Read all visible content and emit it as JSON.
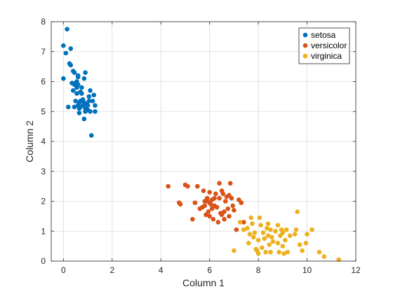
{
  "chart_data": {
    "type": "scatter",
    "title": "",
    "xlabel": "Column 1",
    "ylabel": "Column 2",
    "xlim": [
      -0.5,
      12
    ],
    "ylim": [
      0,
      8
    ],
    "xticks": [
      0,
      2,
      4,
      6,
      8,
      10,
      12
    ],
    "yticks": [
      0,
      1,
      2,
      3,
      4,
      5,
      6,
      7,
      8
    ],
    "grid": true,
    "legend_position": "top-right",
    "series": [
      {
        "name": "setosa",
        "color": "#0072BD",
        "points": [
          [
            0.0,
            7.2
          ],
          [
            0.0,
            6.1
          ],
          [
            0.1,
            6.95
          ],
          [
            0.15,
            7.75
          ],
          [
            0.2,
            5.15
          ],
          [
            0.25,
            6.6
          ],
          [
            0.3,
            6.55
          ],
          [
            0.3,
            7.1
          ],
          [
            0.35,
            5.95
          ],
          [
            0.4,
            5.7
          ],
          [
            0.4,
            6.35
          ],
          [
            0.45,
            6.3
          ],
          [
            0.45,
            5.9
          ],
          [
            0.45,
            5.15
          ],
          [
            0.5,
            5.95
          ],
          [
            0.5,
            5.35
          ],
          [
            0.55,
            6.0
          ],
          [
            0.55,
            5.8
          ],
          [
            0.55,
            5.6
          ],
          [
            0.6,
            6.2
          ],
          [
            0.6,
            6.15
          ],
          [
            0.6,
            5.9
          ],
          [
            0.6,
            5.2
          ],
          [
            0.65,
            5.3
          ],
          [
            0.65,
            5.1
          ],
          [
            0.65,
            4.95
          ],
          [
            0.7,
            5.65
          ],
          [
            0.7,
            5.35
          ],
          [
            0.7,
            5.15
          ],
          [
            0.75,
            5.8
          ],
          [
            0.75,
            5.6
          ],
          [
            0.8,
            5.4
          ],
          [
            0.8,
            5.2
          ],
          [
            0.85,
            6.1
          ],
          [
            0.85,
            5.3
          ],
          [
            0.85,
            4.75
          ],
          [
            0.9,
            6.3
          ],
          [
            0.9,
            5.1
          ],
          [
            0.9,
            5.0
          ],
          [
            0.95,
            5.25
          ],
          [
            1.0,
            5.2
          ],
          [
            1.0,
            5.05
          ],
          [
            1.05,
            5.5
          ],
          [
            1.05,
            5.35
          ],
          [
            1.1,
            5.7
          ],
          [
            1.1,
            5.0
          ],
          [
            1.15,
            4.2
          ],
          [
            1.2,
            5.35
          ],
          [
            1.25,
            5.55
          ],
          [
            1.3,
            5.2
          ],
          [
            1.3,
            5.0
          ]
        ]
      },
      {
        "name": "versicolor",
        "color": "#D95319",
        "points": [
          [
            4.3,
            2.5
          ],
          [
            4.75,
            1.95
          ],
          [
            4.8,
            1.9
          ],
          [
            5.0,
            2.55
          ],
          [
            5.1,
            2.5
          ],
          [
            5.3,
            1.4
          ],
          [
            5.4,
            1.95
          ],
          [
            5.5,
            2.5
          ],
          [
            5.6,
            1.75
          ],
          [
            5.7,
            1.8
          ],
          [
            5.75,
            2.35
          ],
          [
            5.8,
            2.0
          ],
          [
            5.8,
            1.85
          ],
          [
            5.85,
            1.55
          ],
          [
            5.9,
            2.1
          ],
          [
            5.9,
            2.0
          ],
          [
            5.95,
            1.65
          ],
          [
            6.0,
            2.3
          ],
          [
            6.0,
            1.95
          ],
          [
            6.0,
            1.5
          ],
          [
            6.05,
            1.9
          ],
          [
            6.1,
            2.05
          ],
          [
            6.1,
            1.75
          ],
          [
            6.15,
            1.4
          ],
          [
            6.2,
            2.1
          ],
          [
            6.2,
            1.85
          ],
          [
            6.25,
            2.25
          ],
          [
            6.3,
            1.8
          ],
          [
            6.35,
            1.3
          ],
          [
            6.4,
            2.6
          ],
          [
            6.4,
            2.1
          ],
          [
            6.45,
            1.6
          ],
          [
            6.5,
            2.35
          ],
          [
            6.5,
            1.55
          ],
          [
            6.55,
            2.25
          ],
          [
            6.6,
            1.65
          ],
          [
            6.6,
            1.4
          ],
          [
            6.65,
            2.0
          ],
          [
            6.7,
            2.15
          ],
          [
            6.75,
            1.75
          ],
          [
            6.8,
            2.2
          ],
          [
            6.8,
            1.5
          ],
          [
            6.85,
            2.6
          ],
          [
            6.9,
            2.1
          ],
          [
            6.95,
            1.85
          ],
          [
            7.0,
            1.7
          ],
          [
            7.1,
            1.05
          ],
          [
            7.2,
            2.05
          ],
          [
            7.3,
            1.95
          ],
          [
            7.4,
            1.3
          ]
        ]
      },
      {
        "name": "virginica",
        "color": "#EDB120",
        "points": [
          [
            7.0,
            0.35
          ],
          [
            7.25,
            1.3
          ],
          [
            7.4,
            1.05
          ],
          [
            7.55,
            1.1
          ],
          [
            7.6,
            0.6
          ],
          [
            7.65,
            0.9
          ],
          [
            7.7,
            1.45
          ],
          [
            7.75,
            1.25
          ],
          [
            7.8,
            0.8
          ],
          [
            7.85,
            0.95
          ],
          [
            7.9,
            0.4
          ],
          [
            7.95,
            0.35
          ],
          [
            8.0,
            0.7
          ],
          [
            8.0,
            0.25
          ],
          [
            8.05,
            1.45
          ],
          [
            8.1,
            1.2
          ],
          [
            8.15,
            0.45
          ],
          [
            8.2,
            0.95
          ],
          [
            8.25,
            0.75
          ],
          [
            8.3,
            0.3
          ],
          [
            8.35,
            1.1
          ],
          [
            8.4,
            1.25
          ],
          [
            8.4,
            0.85
          ],
          [
            8.45,
            0.55
          ],
          [
            8.5,
            1.05
          ],
          [
            8.5,
            0.3
          ],
          [
            8.55,
            0.8
          ],
          [
            8.6,
            0.65
          ],
          [
            8.7,
            1.0
          ],
          [
            8.8,
            1.2
          ],
          [
            8.8,
            0.6
          ],
          [
            8.85,
            0.3
          ],
          [
            8.9,
            0.85
          ],
          [
            8.95,
            1.05
          ],
          [
            9.0,
            0.95
          ],
          [
            9.0,
            0.5
          ],
          [
            9.05,
            0.25
          ],
          [
            9.1,
            0.7
          ],
          [
            9.15,
            1.05
          ],
          [
            9.2,
            0.3
          ],
          [
            9.3,
            0.85
          ],
          [
            9.5,
            0.9
          ],
          [
            9.55,
            1.05
          ],
          [
            9.6,
            1.65
          ],
          [
            9.7,
            0.55
          ],
          [
            9.8,
            0.35
          ],
          [
            9.95,
            0.6
          ],
          [
            10.0,
            0.9
          ],
          [
            10.2,
            1.05
          ],
          [
            10.5,
            0.3
          ],
          [
            10.7,
            0.15
          ],
          [
            11.3,
            0.05
          ]
        ]
      }
    ]
  }
}
